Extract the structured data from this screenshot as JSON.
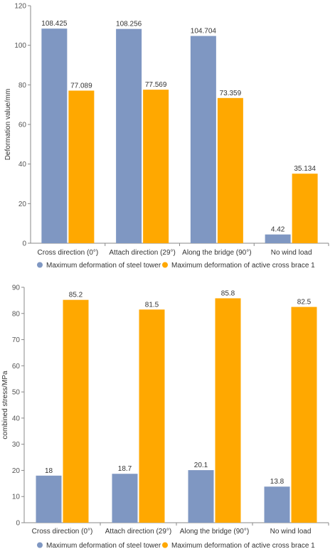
{
  "colors": {
    "steel": "#7f97c2",
    "brace": "#ffa800"
  },
  "chart_data": [
    {
      "type": "bar",
      "ylabel": "Deformation value/mm",
      "ylim": [
        0,
        120
      ],
      "yticks": [
        0,
        20,
        40,
        60,
        80,
        100,
        120
      ],
      "categories": [
        "Cross direction (0°)",
        "Attach direction (29°)",
        "Along the bridge (90°)",
        "No wind load"
      ],
      "series": [
        {
          "name": "Maximum deformation of steel tower",
          "values": [
            108.425,
            108.256,
            104.704,
            4.42
          ],
          "labels": [
            "108.425",
            "108.256",
            "104.704",
            "4.42"
          ]
        },
        {
          "name": "Maximum deformation of active cross brace 1",
          "values": [
            77.089,
            77.569,
            73.359,
            35.134
          ],
          "labels": [
            "77.089",
            "77.569",
            "73.359",
            "35.134"
          ]
        }
      ],
      "legend": "bottom",
      "grid": false
    },
    {
      "type": "bar",
      "ylabel": "combined stress/MPa",
      "ylim": [
        0,
        90
      ],
      "yticks": [
        0,
        10,
        20,
        30,
        40,
        50,
        60,
        70,
        80,
        90
      ],
      "categories": [
        "Cross direction (0°)",
        "Attach direction (29°)",
        "Along the bridge (90°)",
        "No wind load"
      ],
      "series": [
        {
          "name": "Maximum deformation of steel tower",
          "values": [
            18,
            18.7,
            20.1,
            13.8
          ],
          "labels": [
            "18",
            "18.7",
            "20.1",
            "13.8"
          ]
        },
        {
          "name": "Maximum deformation of active cross brace 1",
          "values": [
            85.2,
            81.5,
            85.8,
            82.5
          ],
          "labels": [
            "85.2",
            "81.5",
            "85.8",
            "82.5"
          ]
        }
      ],
      "legend": "bottom",
      "grid": false
    }
  ]
}
